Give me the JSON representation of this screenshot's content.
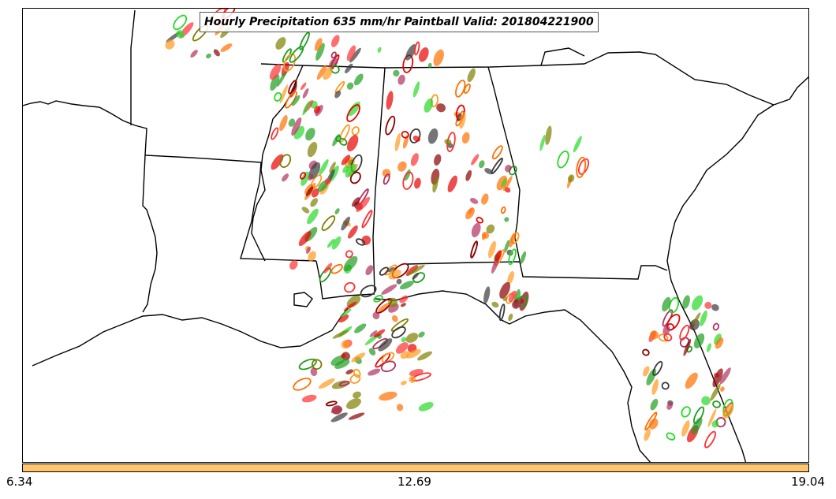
{
  "title": "Hourly Precipitation 635 mm/hr Paintball Valid: 201804221900",
  "colorbar": {
    "color": "#ffc66e",
    "tick_labels": [
      "6.34",
      "12.69",
      "19.04"
    ]
  },
  "colors": {
    "paintball_palette": [
      "#ff6f00",
      "#ff9a1e",
      "#e80000",
      "#ff3030",
      "#1f9d1f",
      "#28d828",
      "#7f7f00",
      "#8b0000",
      "#3a3a3a",
      "#b03060"
    ],
    "borders": "#000000",
    "frame": "#000000"
  },
  "map": {
    "region": "Southeastern United States",
    "layers": [
      "state-borders",
      "coastlines",
      "precipitation-paintball-contours"
    ]
  }
}
